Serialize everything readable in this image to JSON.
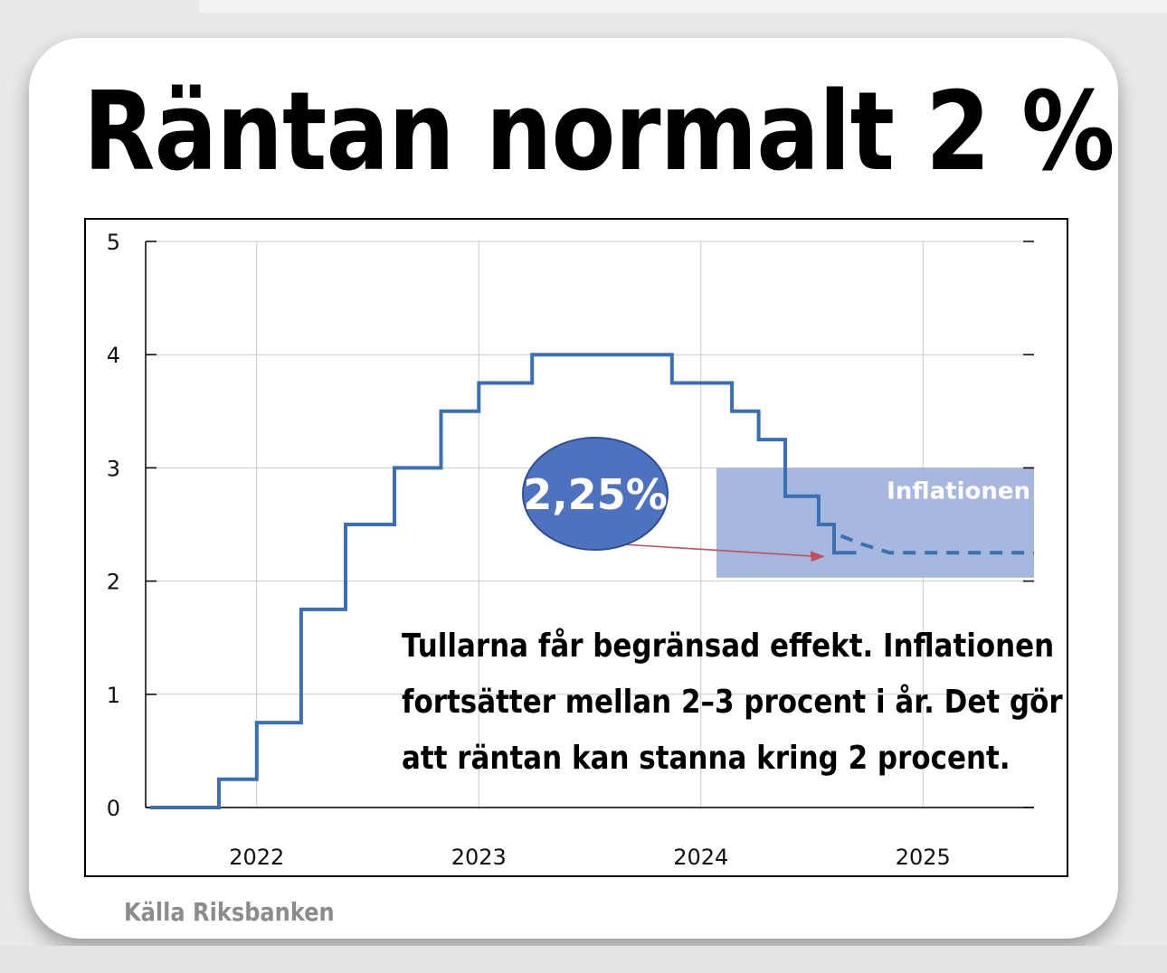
{
  "title": "Räntan normalt 2 %",
  "source": "Källa Riksbanken",
  "note_lines": [
    "Tullarna får begränsad effekt. Inflationen",
    "fortsätter mellan 2–3 procent i år. Det gör",
    "att räntan kan stanna kring 2 procent."
  ],
  "colors": {
    "line": "#3b6fb3",
    "band": "#a7b8de",
    "bubble": "#4e72c0",
    "arrow": "#c0505a"
  },
  "chart_data": {
    "type": "line",
    "x_tick_labels": [
      "2022",
      "2023",
      "2024",
      "2025"
    ],
    "y_tick_labels": [
      "0",
      "1",
      "2",
      "3",
      "4",
      "5"
    ],
    "ylim": [
      0,
      5
    ],
    "xlim": [
      2021.5,
      2025.5
    ],
    "grid": true,
    "series": [
      {
        "style": "solid-step",
        "points": [
          [
            2021.52,
            0
          ],
          [
            2021.83,
            0
          ],
          [
            2021.83,
            0.25
          ],
          [
            2022.0,
            0.25
          ],
          [
            2022.0,
            0.75
          ],
          [
            2022.2,
            0.75
          ],
          [
            2022.2,
            1.75
          ],
          [
            2022.4,
            1.75
          ],
          [
            2022.4,
            2.5
          ],
          [
            2022.62,
            2.5
          ],
          [
            2022.62,
            3.0
          ],
          [
            2022.83,
            3.0
          ],
          [
            2022.83,
            3.5
          ],
          [
            2023.0,
            3.5
          ],
          [
            2023.0,
            3.75
          ],
          [
            2023.24,
            3.75
          ],
          [
            2023.24,
            4.0
          ],
          [
            2023.87,
            4.0
          ],
          [
            2023.87,
            3.75
          ],
          [
            2024.14,
            3.75
          ],
          [
            2024.14,
            3.5
          ],
          [
            2024.26,
            3.5
          ],
          [
            2024.26,
            3.25
          ],
          [
            2024.38,
            3.25
          ],
          [
            2024.38,
            2.75
          ],
          [
            2024.53,
            2.75
          ],
          [
            2024.53,
            2.5
          ],
          [
            2024.6,
            2.5
          ],
          [
            2024.6,
            2.25
          ],
          [
            2024.7,
            2.25
          ]
        ]
      },
      {
        "style": "dashed-forecast",
        "points": [
          [
            2024.63,
            2.4
          ],
          [
            2024.72,
            2.33
          ],
          [
            2024.85,
            2.25
          ],
          [
            2025.5,
            2.25
          ]
        ]
      }
    ],
    "band": {
      "label": "Inflationen",
      "x_from": 2024.07,
      "x_to": 2025.5,
      "y_from": 2.03,
      "y_to": 3.0
    },
    "annotation": {
      "label": "2,25%",
      "target": [
        2024.55,
        2.25
      ]
    }
  }
}
